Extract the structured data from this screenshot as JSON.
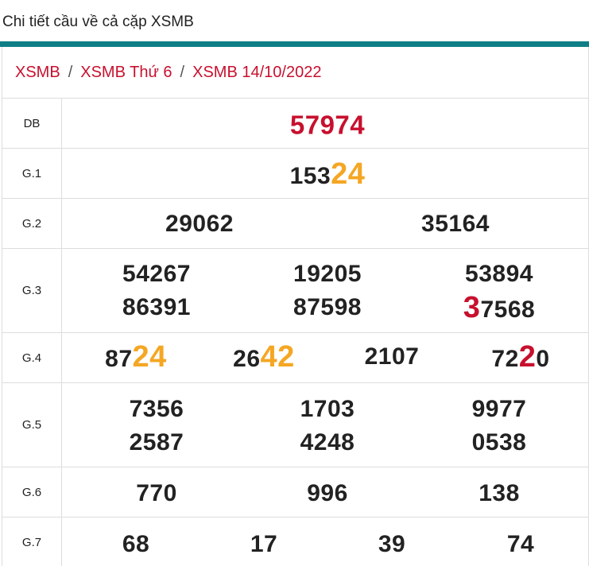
{
  "header": {
    "title": "Chi tiết cầu về cả cặp XSMB"
  },
  "breadcrumb": {
    "items": [
      "XSMB",
      "XSMB Thứ 6",
      "XSMB 14/10/2022"
    ],
    "separator": "/"
  },
  "colors": {
    "accent_bar": "#0f7f86",
    "link_red": "#c8102e",
    "highlight_orange": "#f5a623",
    "text": "#222222"
  },
  "prizes": {
    "db": {
      "label": "DB",
      "value": "57974"
    },
    "g1": {
      "label": "G.1",
      "pre": "153",
      "hl": "24"
    },
    "g2": {
      "label": "G.2",
      "values": [
        "29062",
        "35164"
      ]
    },
    "g3": {
      "label": "G.3",
      "values": [
        "54267",
        "19205",
        "53894",
        "86391",
        "87598"
      ],
      "last_hl": "3",
      "last_rest": "7568"
    },
    "g4": {
      "label": "G.4",
      "v1_pre": "87",
      "v1_hl": "24",
      "v2_pre": "26",
      "v2_hl": "42",
      "v3": "2107",
      "v4_pre": "72",
      "v4_hl": "2",
      "v4_post": "0"
    },
    "g5": {
      "label": "G.5",
      "values": [
        "7356",
        "1703",
        "9977",
        "2587",
        "4248",
        "0538"
      ]
    },
    "g6": {
      "label": "G.6",
      "values": [
        "770",
        "996",
        "138"
      ]
    },
    "g7": {
      "label": "G.7",
      "values": [
        "68",
        "17",
        "39",
        "74"
      ]
    }
  }
}
